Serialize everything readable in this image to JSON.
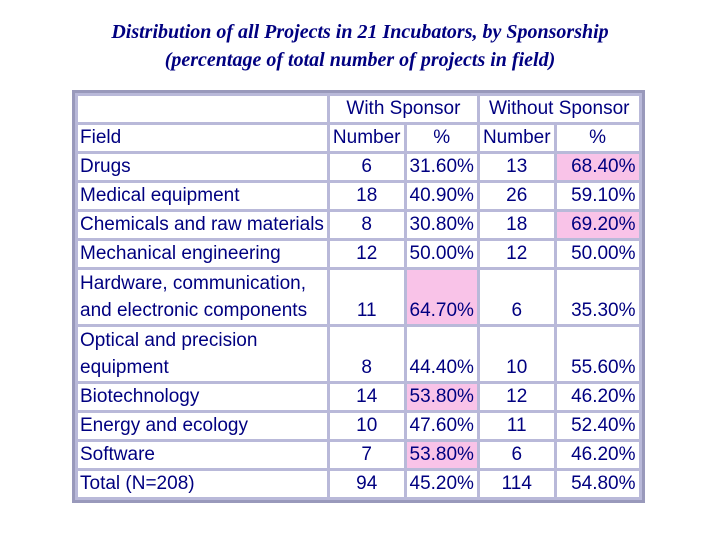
{
  "title": {
    "line1": "Distribution of all Projects in 21 Incubators, by Sponsorship",
    "line2": "(percentage of total number of projects in field)"
  },
  "colors": {
    "text": "#000080",
    "grid": "#b9b9d9",
    "highlight": "#f9c3e8"
  },
  "table": {
    "group_headers": {
      "with_sponsor": "With Sponsor",
      "without_sponsor": "Without Sponsor"
    },
    "column_headers": {
      "field": "Field",
      "number1": "Number",
      "pct1": "%",
      "number2": "Number",
      "pct2": "%"
    },
    "rows": [
      {
        "field": [
          "Drugs"
        ],
        "with_number": "6",
        "with_pct": "31.60%",
        "without_number": "13",
        "without_pct": "68.40%",
        "highlight": "without"
      },
      {
        "field": [
          "Medical equipment"
        ],
        "with_number": "18",
        "with_pct": "40.90%",
        "without_number": "26",
        "without_pct": "59.10%",
        "highlight": ""
      },
      {
        "field": [
          "Chemicals and raw materials"
        ],
        "with_number": "8",
        "with_pct": "30.80%",
        "without_number": "18",
        "without_pct": "69.20%",
        "highlight": "without"
      },
      {
        "field": [
          "Mechanical engineering"
        ],
        "with_number": "12",
        "with_pct": "50.00%",
        "without_number": "12",
        "without_pct": "50.00%",
        "highlight": ""
      },
      {
        "field": [
          "Hardware, communication,",
          "and electronic components"
        ],
        "with_number": "11",
        "with_pct": "64.70%",
        "without_number": "6",
        "without_pct": "35.30%",
        "highlight": "with"
      },
      {
        "field": [
          "Optical and precision",
          "equipment"
        ],
        "with_number": "8",
        "with_pct": "44.40%",
        "without_number": "10",
        "without_pct": "55.60%",
        "highlight": ""
      },
      {
        "field": [
          "Biotechnology"
        ],
        "with_number": "14",
        "with_pct": "53.80%",
        "without_number": "12",
        "without_pct": "46.20%",
        "highlight": "with"
      },
      {
        "field": [
          "Energy and ecology"
        ],
        "with_number": "10",
        "with_pct": "47.60%",
        "without_number": "11",
        "without_pct": "52.40%",
        "highlight": ""
      },
      {
        "field": [
          "Software"
        ],
        "with_number": "7",
        "with_pct": "53.80%",
        "without_number": "6",
        "without_pct": "46.20%",
        "highlight": "with"
      },
      {
        "field": [
          "Total (N=208)"
        ],
        "with_number": "94",
        "with_pct": "45.20%",
        "without_number": "114",
        "without_pct": "54.80%",
        "highlight": ""
      }
    ]
  }
}
